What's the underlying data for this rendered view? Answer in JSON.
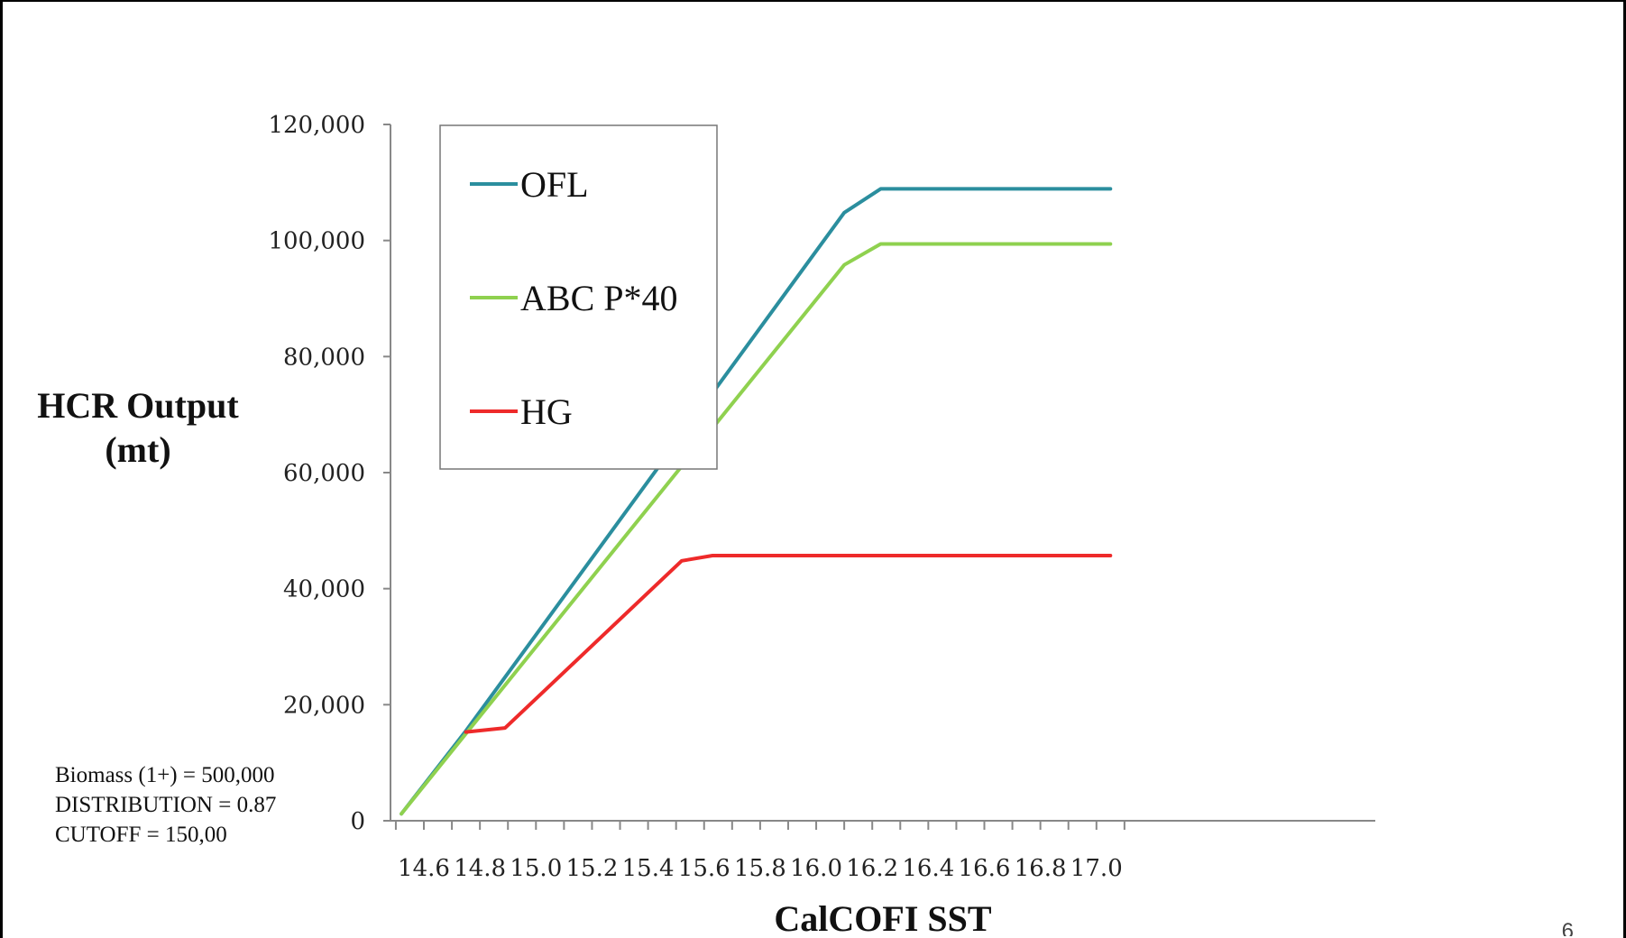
{
  "chart_data": {
    "type": "line",
    "xlabel": "CalCOFI SST",
    "ylabel": [
      "HCR Output",
      "(mt)"
    ],
    "xlim": [
      14.5,
      17.1
    ],
    "ylim": [
      0,
      120000
    ],
    "x_ticks": [
      14.6,
      14.8,
      15.0,
      15.2,
      15.4,
      15.6,
      15.8,
      16.0,
      16.2,
      16.4,
      16.6,
      16.8,
      17.0
    ],
    "x_tick_labels": [
      "14.6",
      "14.8",
      "15.0",
      "15.2",
      "15.4",
      "15.6",
      "15.8",
      "16.0",
      "16.2",
      "16.4",
      "16.6",
      "16.8",
      "17.0"
    ],
    "y_ticks": [
      0,
      20000,
      40000,
      60000,
      80000,
      100000,
      120000
    ],
    "y_tick_labels": [
      "0",
      "20,000",
      "40,000",
      "60,000",
      "80,000",
      "100,000",
      "120,000"
    ],
    "legend_position": "upper-left",
    "grid": false,
    "series": [
      {
        "name": "OFL",
        "color": "#2b8e9e",
        "points": [
          [
            14.52,
            1200
          ],
          [
            14.75,
            15500
          ],
          [
            16.1,
            104800
          ],
          [
            16.23,
            108900
          ],
          [
            17.05,
            108900
          ]
        ]
      },
      {
        "name": "ABC P*40",
        "color": "#8fd14f",
        "points": [
          [
            14.52,
            1200
          ],
          [
            14.75,
            15000
          ],
          [
            16.1,
            95800
          ],
          [
            16.23,
            99400
          ],
          [
            17.05,
            99400
          ]
        ]
      },
      {
        "name": "HG",
        "color": "#ee2a2a",
        "points": [
          [
            14.75,
            15300
          ],
          [
            14.89,
            16000
          ],
          [
            15.52,
            44800
          ],
          [
            15.63,
            45700
          ],
          [
            17.05,
            45700
          ]
        ]
      }
    ]
  },
  "annotation": {
    "lines": [
      "Biomass (1+) = 500,000",
      "DISTRIBUTION = 0.87",
      "CUTOFF = 150,00"
    ]
  },
  "page_number": "6"
}
